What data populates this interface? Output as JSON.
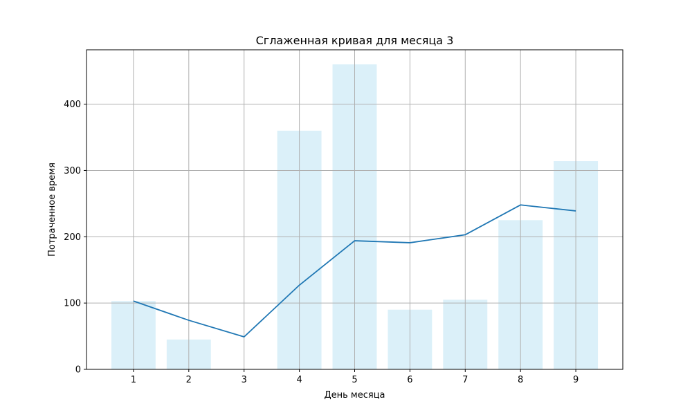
{
  "chart_data": {
    "type": "bar",
    "title": "Сглаженная кривая для месяца 3",
    "xlabel": "День месяца",
    "ylabel": "Потраченное время",
    "categories": [
      1,
      2,
      3,
      4,
      5,
      6,
      7,
      8,
      9
    ],
    "x_ticks": [
      "1",
      "2",
      "3",
      "4",
      "5",
      "6",
      "7",
      "8",
      "9"
    ],
    "y_ticks": [
      "0",
      "100",
      "200",
      "300",
      "400"
    ],
    "ylim": [
      0,
      482
    ],
    "xlim": [
      0.15,
      9.85
    ],
    "grid": true,
    "series": [
      {
        "type": "bar",
        "values": [
          103,
          45,
          0,
          360,
          460,
          90,
          105,
          225,
          314
        ],
        "color": "#87ceeb",
        "opacity": 0.3
      },
      {
        "type": "line",
        "values": [
          103,
          74,
          49,
          127,
          194,
          191,
          203,
          248,
          239
        ],
        "color": "#1f77b4"
      }
    ]
  }
}
